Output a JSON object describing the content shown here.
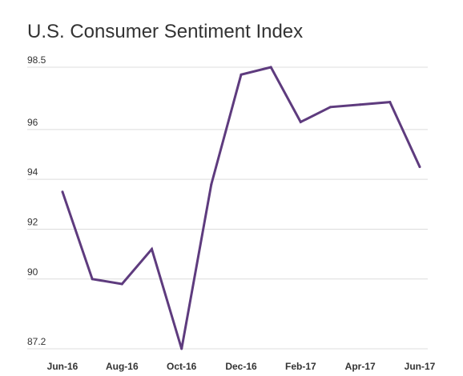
{
  "chart_data": {
    "type": "line",
    "title": "U.S. Consumer Sentiment Index",
    "xlabel": "",
    "ylabel": "",
    "x": [
      "Jun-16",
      "Jul-16",
      "Aug-16",
      "Sep-16",
      "Oct-16",
      "Nov-16",
      "Dec-16",
      "Jan-17",
      "Feb-17",
      "Mar-17",
      "Apr-17",
      "May-17",
      "Jun-17"
    ],
    "x_tick_labels": [
      "Jun-16",
      "Aug-16",
      "Oct-16",
      "Dec-16",
      "Feb-17",
      "Apr-17",
      "Jun-17"
    ],
    "y_tick_labels": [
      "98.5",
      "96",
      "94",
      "92",
      "90",
      "87.2"
    ],
    "y_ticks": [
      98.5,
      96,
      94,
      92,
      90,
      87.2
    ],
    "ylim": [
      87.2,
      98.5
    ],
    "series": [
      {
        "values": [
          93.5,
          90.0,
          89.8,
          91.2,
          87.2,
          93.8,
          98.2,
          98.5,
          96.3,
          96.9,
          97.0,
          97.1,
          94.5
        ]
      }
    ],
    "line_color": "#5e3b7e",
    "grid": true
  }
}
